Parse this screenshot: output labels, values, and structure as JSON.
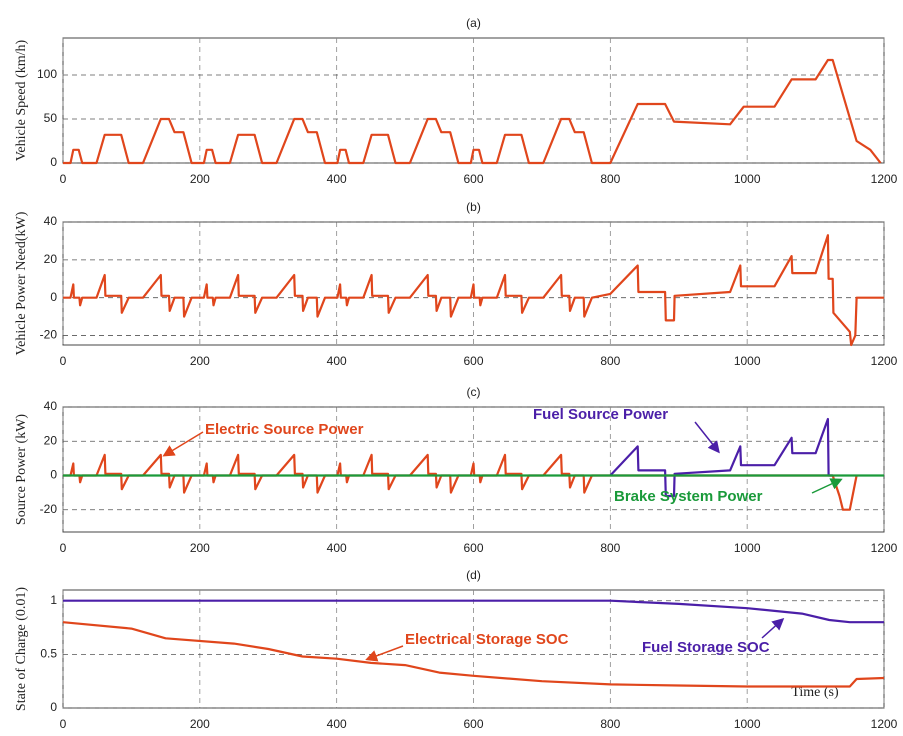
{
  "chart_data": [
    {
      "type": "line",
      "title": "(a)",
      "ylabel": "Vehicle Speed (km/h)",
      "xlim": [
        0,
        1200
      ],
      "xticks": [
        0,
        200,
        400,
        600,
        800,
        1000,
        1200
      ],
      "ylim": [
        0,
        142
      ],
      "yticks": [
        0,
        50,
        100
      ],
      "grid": true,
      "series": [
        {
          "color": "#e0461c",
          "x": [
            0,
            11,
            15,
            23,
            28,
            49,
            61,
            85,
            96,
            117,
            143,
            155,
            163,
            176,
            188,
            195,
            206,
            210,
            218,
            223,
            244,
            256,
            280,
            291,
            312,
            338,
            350,
            358,
            371,
            383,
            390,
            401,
            405,
            413,
            418,
            439,
            451,
            475,
            486,
            507,
            533,
            545,
            553,
            566,
            578,
            585,
            596,
            600,
            608,
            613,
            634,
            646,
            670,
            681,
            702,
            728,
            740,
            748,
            761,
            773,
            800,
            840,
            880,
            893,
            975,
            995,
            1040,
            1065,
            1100,
            1118,
            1125,
            1160,
            1180,
            1195
          ],
          "values": [
            0,
            0,
            15,
            15,
            0,
            0,
            32,
            32,
            0,
            0,
            50,
            50,
            35,
            35,
            0,
            0,
            0,
            15,
            15,
            0,
            0,
            32,
            32,
            0,
            0,
            50,
            50,
            35,
            35,
            0,
            0,
            0,
            15,
            15,
            0,
            0,
            32,
            32,
            0,
            0,
            50,
            50,
            35,
            35,
            0,
            0,
            0,
            15,
            15,
            0,
            0,
            32,
            32,
            0,
            0,
            50,
            50,
            35,
            35,
            0,
            0,
            67,
            67,
            47,
            44,
            64,
            64,
            95,
            95,
            117,
            117,
            25,
            15,
            0
          ]
        }
      ]
    },
    {
      "type": "line",
      "title": "(b)",
      "ylabel": "Vehicle Power Need(kW)",
      "xlim": [
        0,
        1200
      ],
      "xticks": [
        0,
        200,
        400,
        600,
        800,
        1000,
        1200
      ],
      "ylim": [
        -25,
        40
      ],
      "yticks": [
        -20,
        0,
        20,
        40
      ],
      "grid": true,
      "series": [
        {
          "color": "#e0461c",
          "x": [
            0,
            11,
            15,
            16,
            24,
            25,
            28,
            49,
            61,
            62,
            85,
            86,
            96,
            117,
            143,
            144,
            155,
            156,
            163,
            176,
            177,
            188,
            195,
            206,
            210,
            211,
            219,
            220,
            223,
            244,
            256,
            257,
            280,
            281,
            291,
            312,
            338,
            339,
            350,
            351,
            358,
            371,
            372,
            383,
            390,
            401,
            405,
            406,
            414,
            415,
            418,
            439,
            451,
            452,
            475,
            476,
            486,
            507,
            533,
            534,
            545,
            546,
            553,
            566,
            567,
            578,
            585,
            596,
            600,
            601,
            609,
            610,
            613,
            634,
            646,
            647,
            670,
            671,
            681,
            702,
            728,
            729,
            740,
            741,
            748,
            761,
            762,
            773,
            800,
            840,
            841,
            880,
            881,
            893,
            894,
            975,
            990,
            991,
            1040,
            1065,
            1066,
            1100,
            1118,
            1119,
            1125,
            1126,
            1150,
            1152,
            1158,
            1160,
            1200
          ],
          "values": [
            0,
            0,
            7,
            0,
            0,
            -4,
            0,
            0,
            12,
            1,
            1,
            -8,
            0,
            0,
            12,
            1,
            1,
            -7,
            0,
            0,
            -10,
            0,
            0,
            0,
            7,
            0,
            0,
            -4,
            0,
            0,
            12,
            1,
            1,
            -8,
            0,
            0,
            12,
            1,
            1,
            -7,
            0,
            0,
            -10,
            0,
            0,
            0,
            7,
            0,
            0,
            -4,
            0,
            0,
            12,
            1,
            1,
            -8,
            0,
            0,
            12,
            1,
            1,
            -7,
            0,
            0,
            -10,
            0,
            0,
            0,
            7,
            0,
            0,
            -4,
            0,
            0,
            12,
            1,
            1,
            -8,
            0,
            0,
            12,
            1,
            1,
            -7,
            0,
            0,
            -10,
            0,
            2,
            17,
            3,
            3,
            -12,
            -12,
            1,
            3,
            17,
            6,
            6,
            22,
            13,
            13,
            33,
            10,
            10,
            -8,
            -18,
            -25,
            -20,
            0,
            0
          ]
        }
      ]
    },
    {
      "type": "line",
      "title": "(c)",
      "ylabel": "Source Power (kW)",
      "xlim": [
        0,
        1200
      ],
      "xticks": [
        0,
        200,
        400,
        600,
        800,
        1000,
        1200
      ],
      "ylim": [
        -33,
        40
      ],
      "yticks": [
        -20,
        0,
        20,
        40
      ],
      "grid": true,
      "series": [
        {
          "name": "Electric Source Power",
          "color": "#e0461c",
          "x": [
            0,
            11,
            15,
            16,
            24,
            25,
            28,
            49,
            61,
            62,
            85,
            86,
            96,
            117,
            143,
            144,
            155,
            156,
            163,
            176,
            177,
            188,
            195,
            206,
            210,
            211,
            219,
            220,
            223,
            244,
            256,
            257,
            280,
            281,
            291,
            312,
            338,
            339,
            350,
            351,
            358,
            371,
            372,
            383,
            390,
            401,
            405,
            406,
            414,
            415,
            418,
            439,
            451,
            452,
            475,
            476,
            486,
            507,
            533,
            534,
            545,
            546,
            553,
            566,
            567,
            578,
            585,
            596,
            600,
            601,
            609,
            610,
            613,
            634,
            646,
            647,
            670,
            671,
            681,
            702,
            728,
            729,
            740,
            741,
            748,
            761,
            762,
            773,
            800,
            1125,
            1135,
            1140,
            1150,
            1160
          ],
          "values": [
            0,
            0,
            7,
            0,
            0,
            -4,
            0,
            0,
            12,
            1,
            1,
            -8,
            0,
            0,
            12,
            1,
            1,
            -7,
            0,
            0,
            -10,
            0,
            0,
            0,
            7,
            0,
            0,
            -4,
            0,
            0,
            12,
            1,
            1,
            -8,
            0,
            0,
            12,
            1,
            1,
            -7,
            0,
            0,
            -10,
            0,
            0,
            0,
            7,
            0,
            0,
            -4,
            0,
            0,
            12,
            1,
            1,
            -8,
            0,
            0,
            12,
            1,
            1,
            -7,
            0,
            0,
            -10,
            0,
            0,
            0,
            7,
            0,
            0,
            -4,
            0,
            0,
            12,
            1,
            1,
            -8,
            0,
            0,
            12,
            1,
            1,
            -7,
            0,
            0,
            -10,
            0,
            0,
            0,
            -12,
            -20,
            -20,
            0
          ]
        },
        {
          "name": "Fuel Source Power",
          "color": "#4b1fa8",
          "x": [
            800,
            840,
            841,
            880,
            881,
            893,
            894,
            975,
            990,
            991,
            1040,
            1065,
            1066,
            1100,
            1118,
            1119,
            1125
          ],
          "values": [
            0,
            17,
            3,
            3,
            -12,
            -12,
            1,
            3,
            17,
            6,
            6,
            22,
            13,
            13,
            33,
            0,
            0
          ]
        },
        {
          "name": "Brake System Power",
          "color": "#1a9a3a",
          "x": [
            0,
            1200
          ],
          "values": [
            0,
            0
          ]
        }
      ]
    },
    {
      "type": "line",
      "title": "(d)",
      "ylabel": "State of Charge (0.01)",
      "xlabel": "Time (s)",
      "xlim": [
        0,
        1200
      ],
      "xticks": [
        0,
        200,
        400,
        600,
        800,
        1000,
        1200
      ],
      "ylim": [
        0,
        1.1
      ],
      "yticks": [
        0,
        0.5,
        1
      ],
      "grid": true,
      "series": [
        {
          "name": "Electrical Storage SOC",
          "color": "#e0461c",
          "x": [
            0,
            100,
            150,
            250,
            300,
            350,
            400,
            450,
            500,
            550,
            600,
            700,
            800,
            900,
            1000,
            1150,
            1160,
            1200
          ],
          "values": [
            0.8,
            0.74,
            0.65,
            0.6,
            0.55,
            0.48,
            0.46,
            0.42,
            0.4,
            0.33,
            0.3,
            0.25,
            0.22,
            0.21,
            0.2,
            0.2,
            0.27,
            0.28
          ]
        },
        {
          "name": "Fuel Storage SOC",
          "color": "#4b1fa8",
          "x": [
            0,
            800,
            900,
            1000,
            1080,
            1120,
            1150,
            1200
          ],
          "values": [
            1,
            1,
            0.97,
            0.93,
            0.88,
            0.82,
            0.8,
            0.8
          ]
        }
      ]
    }
  ]
}
